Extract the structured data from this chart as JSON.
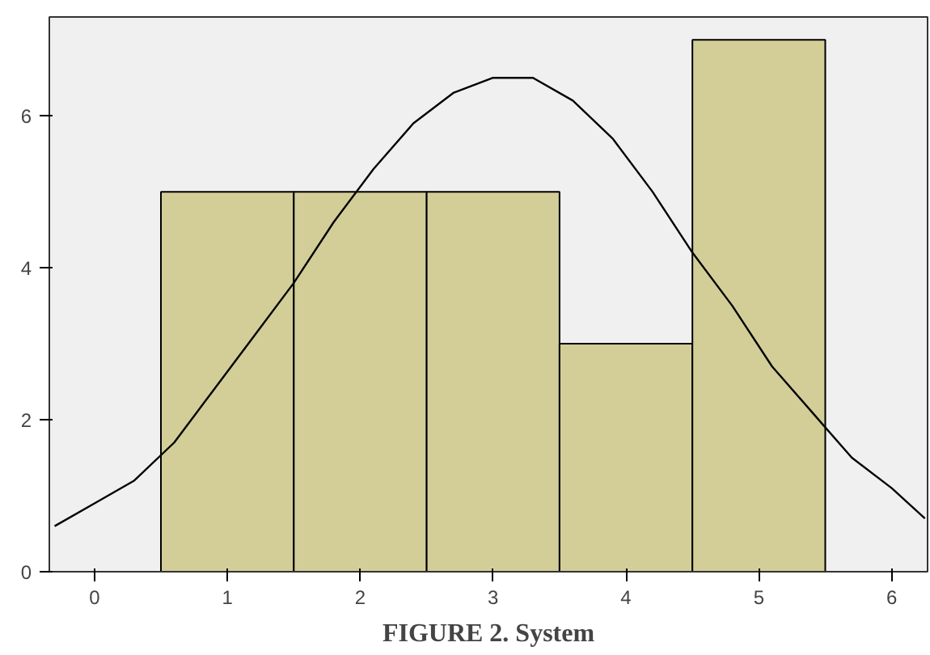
{
  "chart_data": {
    "type": "histogram",
    "title": "FIGURE 2. System",
    "bins": [
      0.5,
      1.5,
      2.5,
      3.5,
      4.5,
      5.5
    ],
    "values": [
      5,
      5,
      5,
      3,
      7
    ],
    "color": "#d3ce98",
    "series": [
      {
        "type": "line",
        "color": "#000000",
        "x": [
          -0.3,
          0,
          0.3,
          0.6,
          0.9,
          1.2,
          1.5,
          1.8,
          2.1,
          2.4,
          2.7,
          3.0,
          3.3,
          3.6,
          3.9,
          4.2,
          4.5,
          4.8,
          5.1,
          5.4,
          5.7,
          6.0,
          6.25
        ],
        "values": [
          0.6,
          0.9,
          1.2,
          1.7,
          2.4,
          3.1,
          3.8,
          4.6,
          5.3,
          5.9,
          6.3,
          6.5,
          6.5,
          6.2,
          5.7,
          5.0,
          4.2,
          3.5,
          2.7,
          2.1,
          1.5,
          1.1,
          0.7
        ]
      }
    ],
    "xlim": [
      -0.34,
      6.27
    ],
    "ylim": [
      0,
      7.3
    ],
    "xticks": [
      0,
      1,
      2,
      3,
      4,
      5,
      6
    ],
    "yticks": [
      0,
      2,
      4,
      6
    ]
  }
}
